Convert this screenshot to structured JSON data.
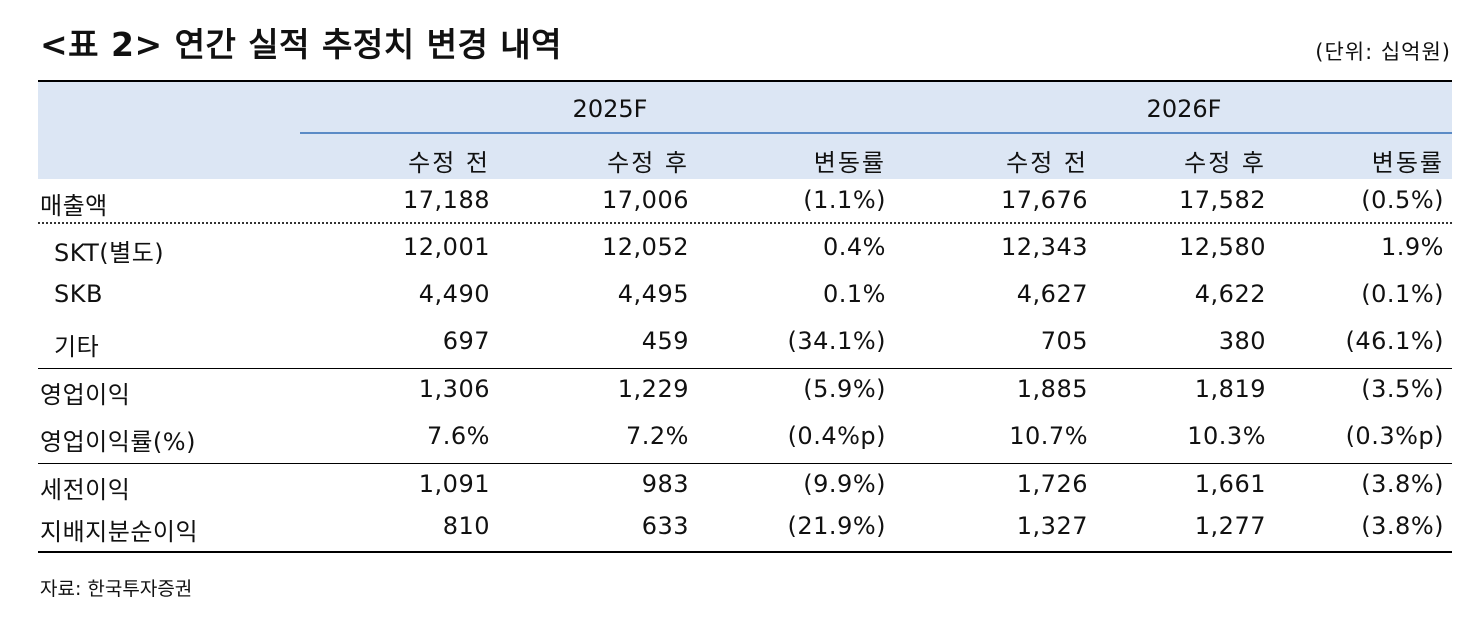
{
  "title": "<표 2> 연간 실적 추정치 변경 내역",
  "unit": "(단위: 십억원)",
  "groups": [
    "2025F",
    "2026F"
  ],
  "subheaders": [
    "수정 전",
    "수정 후",
    "변동률",
    "수정 전",
    "수정 후",
    "변동률"
  ],
  "rows": [
    {
      "label": "매출액",
      "values": [
        "17,188",
        "17,006",
        "(1.1%)",
        "17,676",
        "17,582",
        "(0.5%)"
      ]
    },
    {
      "label": "SKT(별도)",
      "values": [
        "12,001",
        "12,052",
        "0.4%",
        "12,343",
        "12,580",
        "1.9%"
      ]
    },
    {
      "label": "SKB",
      "values": [
        "4,490",
        "4,495",
        "0.1%",
        "4,627",
        "4,622",
        "(0.1%)"
      ]
    },
    {
      "label": "기타",
      "values": [
        "697",
        "459",
        "(34.1%)",
        "705",
        "380",
        "(46.1%)"
      ]
    },
    {
      "label": "영업이익",
      "values": [
        "1,306",
        "1,229",
        "(5.9%)",
        "1,885",
        "1,819",
        "(3.5%)"
      ]
    },
    {
      "label": "영업이익률(%)",
      "values": [
        "7.6%",
        "7.2%",
        "(0.4%p)",
        "10.7%",
        "10.3%",
        "(0.3%p)"
      ]
    },
    {
      "label": "세전이익",
      "values": [
        "1,091",
        "983",
        "(9.9%)",
        "1,726",
        "1,661",
        "(3.8%)"
      ]
    },
    {
      "label": "지배지분순이익",
      "values": [
        "810",
        "633",
        "(21.9%)",
        "1,327",
        "1,277",
        "(3.8%)"
      ]
    }
  ],
  "source": "자료: 한국투자증권",
  "colors": {
    "header_bg": "#dce6f4",
    "group_rule": "#5b8bc6"
  }
}
